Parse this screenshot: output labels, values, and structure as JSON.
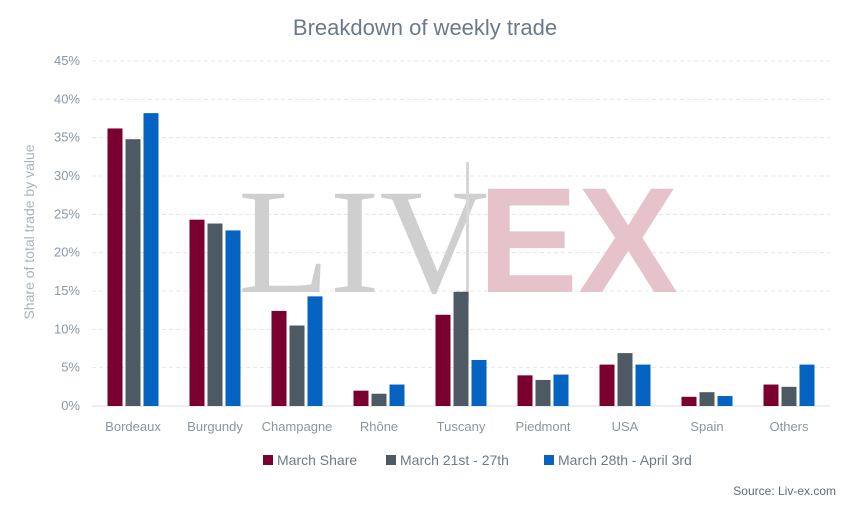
{
  "watermark": {
    "left": "LIV",
    "right": "EX"
  },
  "source": "Source: Liv-ex.com",
  "chart_data": {
    "type": "bar",
    "title": "Breakdown of weekly trade",
    "xlabel": "",
    "ylabel": "Share of total trade by value",
    "ylim": [
      0,
      45
    ],
    "y_ticks": [
      "0%",
      "5%",
      "10%",
      "15%",
      "20%",
      "25%",
      "30%",
      "35%",
      "40%",
      "45%"
    ],
    "y_tick_values": [
      0,
      5,
      10,
      15,
      20,
      25,
      30,
      35,
      40,
      45
    ],
    "grid": true,
    "legend_position": "bottom",
    "categories": [
      "Bordeaux",
      "Burgundy",
      "Champagne",
      "Rhône",
      "Tuscany",
      "Piedmont",
      "USA",
      "Spain",
      "Others"
    ],
    "series": [
      {
        "name": "March Share",
        "color": "#7a0030",
        "values": [
          36.2,
          24.3,
          12.4,
          2.0,
          11.9,
          4.0,
          5.4,
          1.2,
          2.8
        ]
      },
      {
        "name": "March 21st - 27th",
        "color": "#4d5963",
        "values": [
          34.8,
          23.8,
          10.5,
          1.6,
          14.9,
          3.4,
          6.9,
          1.8,
          2.5
        ]
      },
      {
        "name": "March 28th - April 3rd",
        "color": "#0563c1",
        "values": [
          38.2,
          22.9,
          14.3,
          2.8,
          6.0,
          4.1,
          5.4,
          1.3,
          5.4
        ]
      }
    ]
  }
}
